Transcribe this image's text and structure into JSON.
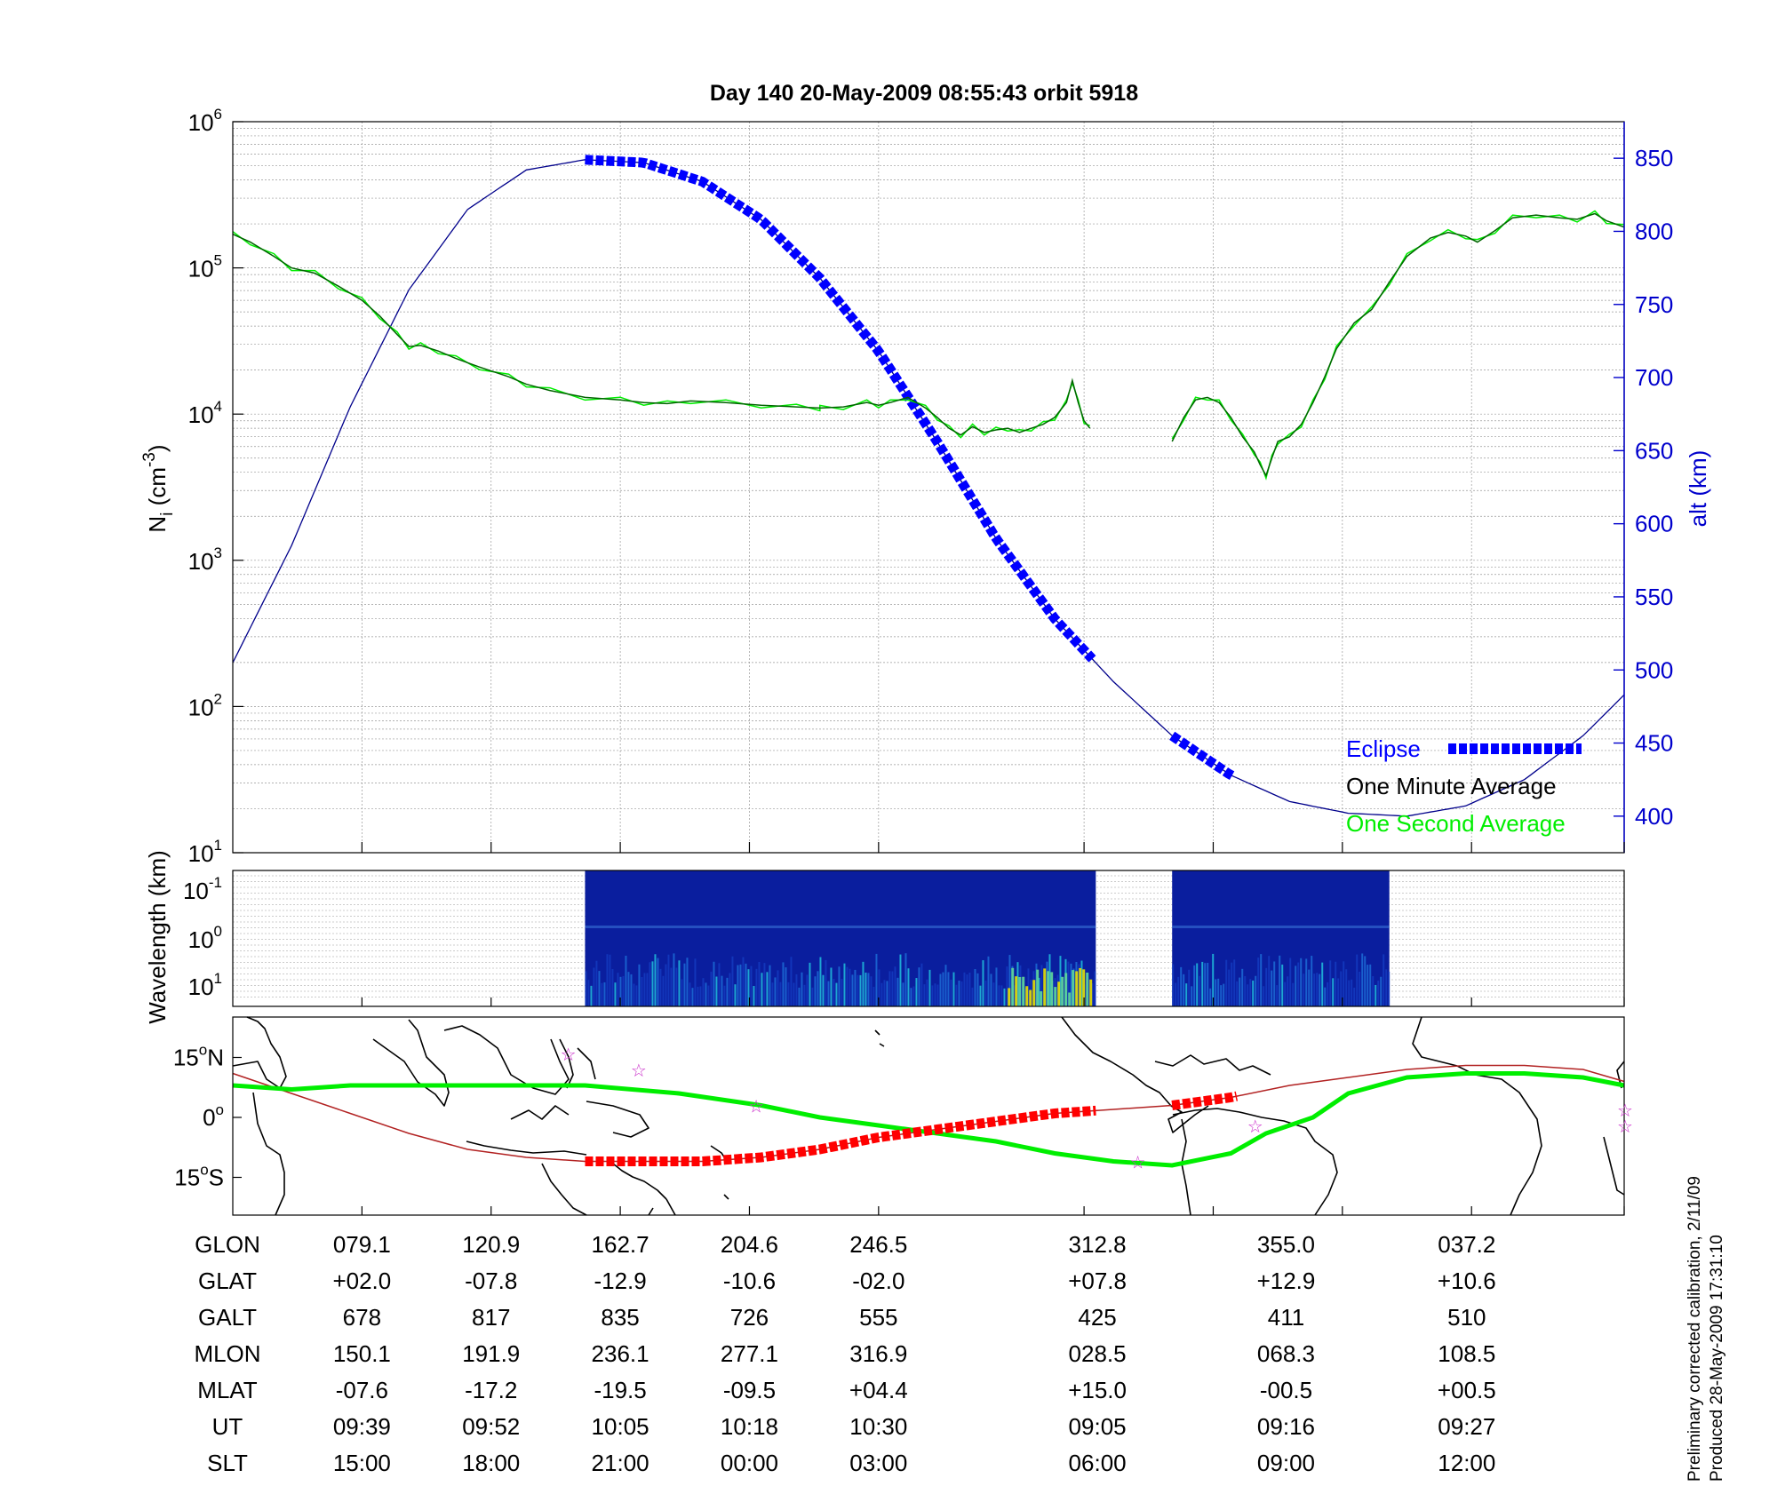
{
  "title": "Day 140  20-May-2009 08:55:43   orbit 5918",
  "colors": {
    "eclipse": "#0000ff",
    "one_minute": "#006400",
    "one_second": "#00ee00",
    "altitude": "#00008b",
    "track": "#00ee00",
    "magnetic": "#b22222",
    "eclipse_track": "#ff0000",
    "star": "#cc33cc",
    "axis_right": "#0000cc"
  },
  "chart_data": [
    {
      "type": "line",
      "panel": "ion-density",
      "ylabel": "N_i (cm^-3)",
      "ylabel_main": "N",
      "ylabel_sub": "i",
      "ylabel_unit_open": " (cm",
      "ylabel_unit_exp": "-3",
      "ylabel_unit_close": ")",
      "yscale": "log",
      "ylim": [
        10,
        1000000
      ],
      "yticks": [
        {
          "base": "10",
          "exp": "1",
          "value": 10
        },
        {
          "base": "10",
          "exp": "2",
          "value": 100
        },
        {
          "base": "10",
          "exp": "3",
          "value": 1000
        },
        {
          "base": "10",
          "exp": "4",
          "value": 10000
        },
        {
          "base": "10",
          "exp": "5",
          "value": 100000
        },
        {
          "base": "10",
          "exp": "6",
          "value": 1000000
        }
      ],
      "y2label": "alt (km)",
      "y2lim": [
        375,
        875
      ],
      "y2ticks": [
        "400",
        "450",
        "500",
        "550",
        "600",
        "650",
        "700",
        "750",
        "800",
        "850"
      ],
      "grid": true,
      "legend": {
        "position": "bottom-right",
        "entries": [
          "Eclipse",
          "One Minute Average",
          "One Second Average"
        ]
      },
      "x_fraction_note": "",
      "density_segments": [
        {
          "points": [
            [
              0.0,
              170000
            ],
            [
              0.015,
              150000
            ],
            [
              0.035,
              120000
            ],
            [
              0.05,
              100000
            ],
            [
              0.07,
              92000
            ],
            [
              0.09,
              75000
            ],
            [
              0.11,
              60000
            ],
            [
              0.125,
              47000
            ],
            [
              0.14,
              35000
            ],
            [
              0.15,
              29000
            ],
            [
              0.16,
              29500
            ],
            [
              0.175,
              27000
            ],
            [
              0.19,
              24000
            ],
            [
              0.21,
              21000
            ],
            [
              0.235,
              18000
            ],
            [
              0.25,
              16000
            ],
            [
              0.27,
              14500
            ],
            [
              0.3,
              13000
            ],
            [
              0.33,
              12500
            ],
            [
              0.35,
              12000
            ],
            [
              0.37,
              11800
            ],
            [
              0.39,
              12300
            ],
            [
              0.42,
              12000
            ],
            [
              0.45,
              11500
            ],
            [
              0.48,
              11200
            ],
            [
              0.5,
              11000
            ],
            [
              0.52,
              11200
            ],
            [
              0.54,
              12000
            ],
            [
              0.55,
              11500
            ],
            [
              0.5,
              11000
            ],
            [
              0.56,
              12000
            ],
            [
              0.575,
              13000
            ],
            [
              0.59,
              11000
            ],
            [
              0.6,
              9500
            ],
            [
              0.61,
              8000
            ],
            [
              0.62,
              7200
            ],
            [
              0.63,
              8200
            ],
            [
              0.64,
              7500
            ],
            [
              0.65,
              7800
            ],
            [
              0.66,
              8000
            ],
            [
              0.67,
              7500
            ],
            [
              0.68,
              8000
            ],
            [
              0.69,
              8500
            ],
            [
              0.7,
              9500
            ],
            [
              0.71,
              12000
            ],
            [
              0.715,
              17000
            ],
            [
              0.72,
              12000
            ],
            [
              0.725,
              9000
            ],
            [
              0.73,
              8000
            ]
          ]
        },
        {
          "points": [
            [
              0.8,
              6500
            ],
            [
              0.81,
              9500
            ],
            [
              0.82,
              12500
            ],
            [
              0.83,
              13000
            ],
            [
              0.84,
              12000
            ],
            [
              0.85,
              9500
            ],
            [
              0.86,
              7000
            ],
            [
              0.87,
              5500
            ],
            [
              0.875,
              4500
            ],
            [
              0.88,
              3800
            ],
            [
              0.885,
              5000
            ],
            [
              0.89,
              6500
            ],
            [
              0.9,
              7000
            ],
            [
              0.91,
              8500
            ],
            [
              0.92,
              12000
            ],
            [
              0.93,
              18000
            ],
            [
              0.94,
              28000
            ],
            [
              0.955,
              42000
            ],
            [
              0.97,
              52000
            ],
            [
              0.985,
              80000
            ],
            [
              1.0,
              120000
            ],
            [
              1.02,
              160000
            ],
            [
              1.035,
              175000
            ],
            [
              1.05,
              165000
            ],
            [
              1.06,
              150000
            ],
            [
              1.075,
              180000
            ],
            [
              1.09,
              220000
            ],
            [
              1.11,
              230000
            ],
            [
              1.13,
              220000
            ],
            [
              1.145,
              215000
            ],
            [
              1.16,
              235000
            ],
            [
              1.17,
              210000
            ],
            [
              1.185,
              190000
            ]
          ]
        }
      ],
      "altitude_points": [
        [
          0.0,
          505
        ],
        [
          0.05,
          585
        ],
        [
          0.1,
          680
        ],
        [
          0.15,
          760
        ],
        [
          0.2,
          815
        ],
        [
          0.25,
          842
        ],
        [
          0.3,
          849
        ],
        [
          0.35,
          847
        ],
        [
          0.4,
          834
        ],
        [
          0.45,
          808
        ],
        [
          0.5,
          768
        ],
        [
          0.55,
          718
        ],
        [
          0.6,
          656
        ],
        [
          0.65,
          590
        ],
        [
          0.7,
          535
        ],
        [
          0.75,
          492
        ],
        [
          0.8,
          455
        ],
        [
          0.85,
          428
        ],
        [
          0.9,
          410
        ],
        [
          0.95,
          402
        ],
        [
          1.0,
          400
        ],
        [
          1.05,
          407
        ],
        [
          1.1,
          425
        ],
        [
          1.15,
          455
        ],
        [
          1.185,
          483
        ]
      ],
      "eclipse_ranges": [
        [
          0.3,
          0.735
        ],
        [
          0.8,
          0.855
        ]
      ]
    },
    {
      "type": "heatmap",
      "panel": "wavelength-spectrogram",
      "ylabel": "Wavelength (km)",
      "yticks": [
        {
          "base": "10",
          "exp": "-1"
        },
        {
          "base": "10",
          "exp": "0"
        },
        {
          "base": "10",
          "exp": "1"
        }
      ],
      "data_ranges": [
        [
          0.3,
          0.735
        ],
        [
          0.8,
          0.985
        ]
      ]
    },
    {
      "type": "map",
      "panel": "ground-track",
      "yticks": [
        {
          "deg": "15",
          "unit": "N",
          "lat": 15
        },
        {
          "deg": "0",
          "unit": "",
          "lat": 0
        },
        {
          "deg": "15",
          "unit": "S",
          "lat": -15
        }
      ],
      "ground_track": [
        [
          0,
          8
        ],
        [
          0.05,
          7
        ],
        [
          0.1,
          8
        ],
        [
          0.2,
          8
        ],
        [
          0.3,
          8
        ],
        [
          0.38,
          6
        ],
        [
          0.45,
          3
        ],
        [
          0.5,
          0
        ],
        [
          0.55,
          -2
        ],
        [
          0.6,
          -4
        ],
        [
          0.65,
          -6
        ],
        [
          0.7,
          -9
        ],
        [
          0.75,
          -11
        ],
        [
          0.8,
          -12
        ],
        [
          0.85,
          -9
        ],
        [
          0.88,
          -4
        ],
        [
          0.92,
          0
        ],
        [
          0.95,
          6
        ],
        [
          1.0,
          10
        ],
        [
          1.05,
          11
        ],
        [
          1.1,
          11
        ],
        [
          1.15,
          10
        ],
        [
          1.185,
          8
        ]
      ],
      "magnetic_equator": [
        [
          0,
          11
        ],
        [
          0.05,
          6
        ],
        [
          0.1,
          1
        ],
        [
          0.15,
          -4
        ],
        [
          0.2,
          -8
        ],
        [
          0.25,
          -10
        ],
        [
          0.3,
          -11
        ],
        [
          0.35,
          -11
        ],
        [
          0.4,
          -11
        ],
        [
          0.45,
          -10
        ],
        [
          0.5,
          -8
        ],
        [
          0.55,
          -5
        ],
        [
          0.6,
          -3
        ],
        [
          0.65,
          -1
        ],
        [
          0.7,
          1
        ],
        [
          0.75,
          2
        ],
        [
          0.8,
          3
        ],
        [
          0.85,
          5
        ],
        [
          0.9,
          8
        ],
        [
          0.95,
          10
        ],
        [
          1.0,
          12
        ],
        [
          1.05,
          13
        ],
        [
          1.1,
          13
        ],
        [
          1.15,
          12
        ],
        [
          1.185,
          9
        ]
      ],
      "eclipse_track_ranges": [
        [
          0.3,
          0.735
        ],
        [
          0.8,
          0.855
        ]
      ]
    },
    {
      "type": "table",
      "panel": "orbit-parameters",
      "rows": [
        {
          "label": "GLON",
          "values": [
            "079.1",
            "120.9",
            "162.7",
            "204.6",
            "246.5",
            "312.8",
            "355.0",
            "037.2"
          ]
        },
        {
          "label": "GLAT",
          "values": [
            "+02.0",
            "-07.8",
            "-12.9",
            "-10.6",
            "-02.0",
            "+07.8",
            "+12.9",
            "+10.6"
          ]
        },
        {
          "label": "GALT",
          "values": [
            "678",
            "817",
            "835",
            "726",
            "555",
            "425",
            "411",
            "510"
          ]
        },
        {
          "label": "MLON",
          "values": [
            "150.1",
            "191.9",
            "236.1",
            "277.1",
            "316.9",
            "028.5",
            "068.3",
            "108.5"
          ]
        },
        {
          "label": "MLAT",
          "values": [
            "-07.6",
            "-17.2",
            "-19.5",
            "-09.5",
            "+04.4",
            "+15.0",
            "-00.5",
            "+00.5"
          ]
        },
        {
          "label": "UT",
          "values": [
            "09:39",
            "09:52",
            "10:05",
            "10:18",
            "10:30",
            "09:05",
            "09:16",
            "09:27"
          ]
        },
        {
          "label": "SLT",
          "values": [
            "15:00",
            "18:00",
            "21:00",
            "00:00",
            "03:00",
            "06:00",
            "09:00",
            "12:00"
          ]
        }
      ]
    }
  ],
  "footnote": {
    "line1": "Preliminary corrected calibration, 2/11/09",
    "line2": "Produced 28-May-2009 17:31:10"
  }
}
